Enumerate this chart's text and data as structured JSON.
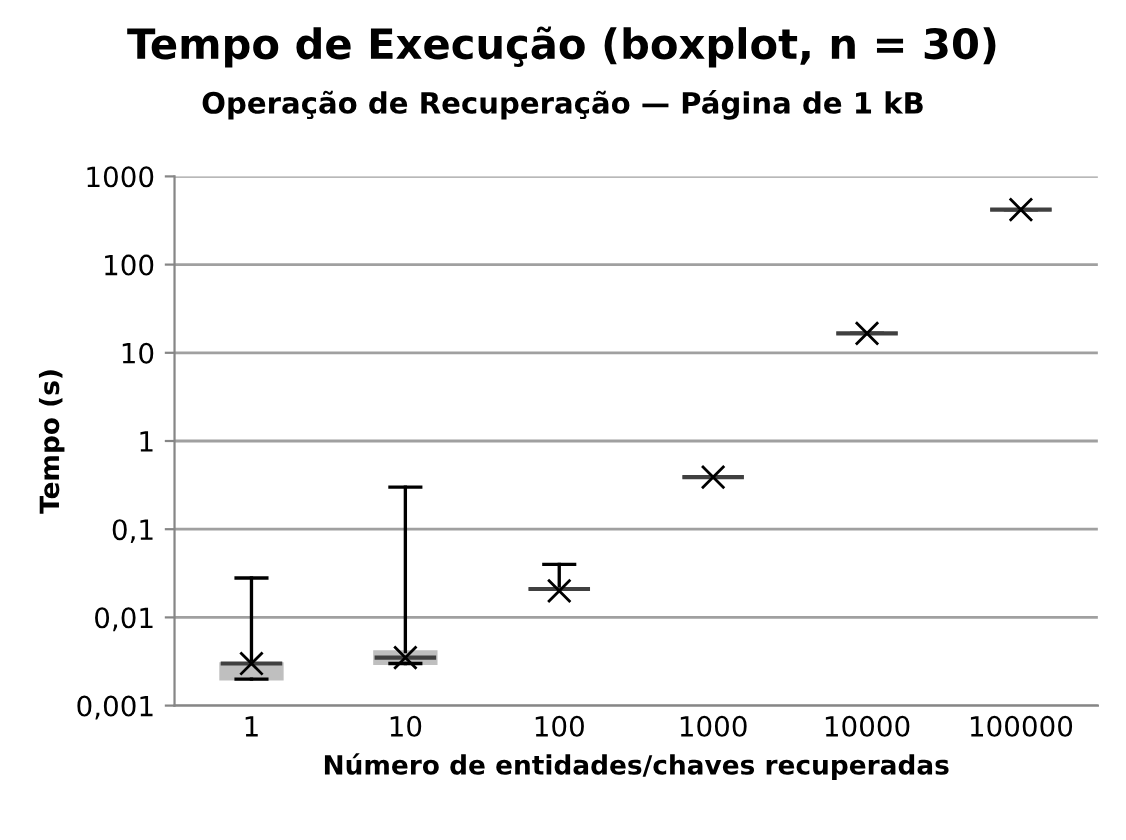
{
  "chart_data": {
    "type": "box",
    "title": "Tempo de Execução (boxplot, n = 30)",
    "subtitle": "Operação de Recuperação — Página de 1 kB",
    "xlabel": "Número de entidades/chaves recuperadas",
    "ylabel": "Tempo (s)",
    "categories": [
      "1",
      "10",
      "100",
      "1000",
      "10000",
      "100000"
    ],
    "boxes": [
      {
        "low": 0.002,
        "q1": 0.002,
        "median": 0.003,
        "q3": 0.003,
        "high": 0.028,
        "mean": 0.003
      },
      {
        "low": 0.003,
        "q1": 0.003,
        "median": 0.0035,
        "q3": 0.0041,
        "high": 0.3,
        "mean": 0.0035
      },
      {
        "low": 0.021,
        "q1": 0.021,
        "median": 0.021,
        "q3": 0.021,
        "high": 0.04,
        "mean": 0.02
      },
      {
        "low": 0.39,
        "q1": 0.39,
        "median": 0.39,
        "q3": 0.39,
        "high": 0.39,
        "mean": 0.39
      },
      {
        "low": 16.6,
        "q1": 16.6,
        "median": 16.6,
        "q3": 16.6,
        "high": 16.6,
        "mean": 16.6
      },
      {
        "low": 420,
        "q1": 420,
        "median": 420,
        "q3": 420,
        "high": 420,
        "mean": 420
      }
    ],
    "color": "#bfbfbf",
    "log": "y",
    "ylim": [
      0.001,
      1000
    ],
    "yticks": [
      {
        "value": 0.001,
        "label": "0,001"
      },
      {
        "value": 0.01,
        "label": "0,01"
      },
      {
        "value": 0.1,
        "label": "0,1"
      },
      1,
      10,
      100,
      1000
    ],
    "grid": "y",
    "marker": "cross"
  }
}
